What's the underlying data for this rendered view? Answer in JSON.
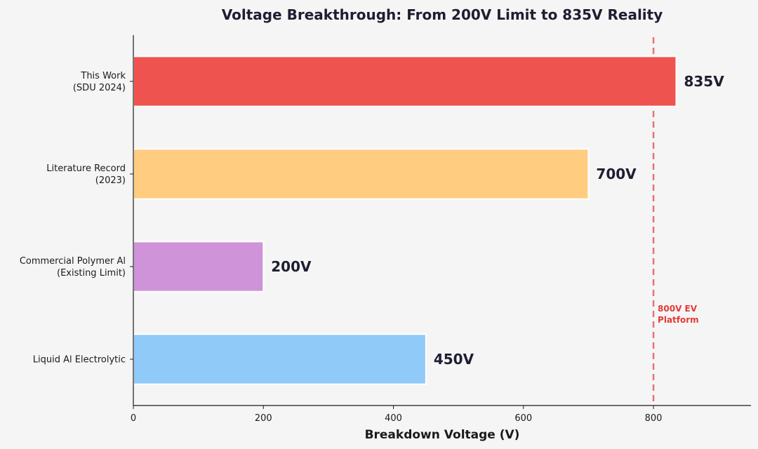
{
  "chart_data": {
    "type": "bar",
    "orientation": "horizontal",
    "title": "Voltage Breakthrough: From 200V Limit to 835V Reality",
    "xlabel": "Breakdown Voltage (V)",
    "ylabel": "",
    "xlim": [
      0,
      950
    ],
    "xticks": [
      0,
      200,
      400,
      600,
      800
    ],
    "grid": false,
    "categories": [
      [
        "This Work",
        "(SDU 2024)"
      ],
      [
        "Literature Record",
        "(2023)"
      ],
      [
        "Commercial Polymer Al",
        "(Existing Limit)"
      ],
      [
        "Liquid Al Electrolytic"
      ]
    ],
    "values": [
      835,
      700,
      200,
      450
    ],
    "value_labels": [
      "835V",
      "700V",
      "200V",
      "450V"
    ],
    "colors": [
      "#ef5350",
      "#ffcc80",
      "#ce93d8",
      "#90caf9"
    ],
    "reference_line": {
      "value": 800,
      "label": [
        "800V EV",
        "Platform"
      ],
      "color": "#e57373",
      "style": "dashed"
    }
  }
}
